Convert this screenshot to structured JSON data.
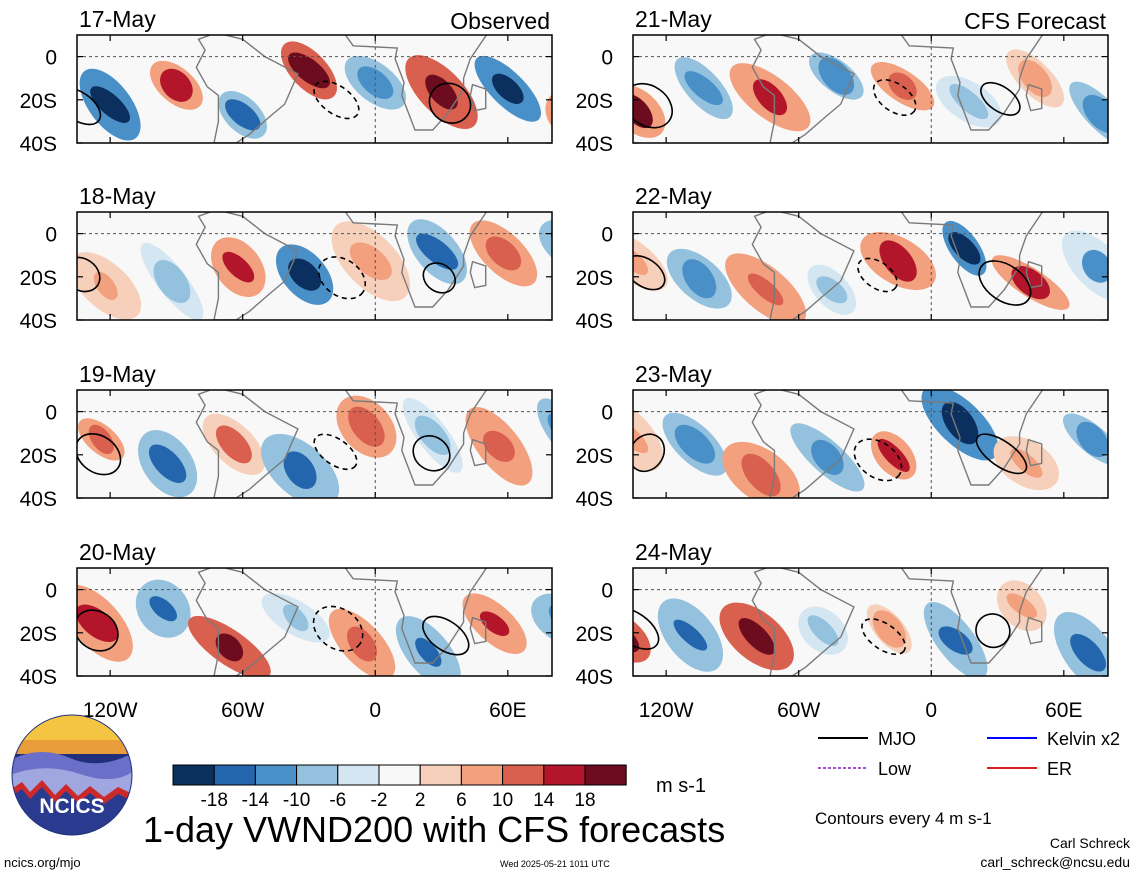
{
  "chart_data": {
    "type": "heatmap",
    "title": "1-day VWND200 with CFS forecasts",
    "unit_label": "m s-1",
    "column_labels": [
      "Observed",
      "CFS Forecast"
    ],
    "panels": [
      {
        "date": "17-May",
        "column": "Observed",
        "row": 0
      },
      {
        "date": "18-May",
        "column": "Observed",
        "row": 1
      },
      {
        "date": "19-May",
        "column": "Observed",
        "row": 2
      },
      {
        "date": "20-May",
        "column": "Observed",
        "row": 3
      },
      {
        "date": "21-May",
        "column": "CFS Forecast",
        "row": 0
      },
      {
        "date": "22-May",
        "column": "CFS Forecast",
        "row": 1
      },
      {
        "date": "23-May",
        "column": "CFS Forecast",
        "row": 2
      },
      {
        "date": "24-May",
        "column": "CFS Forecast",
        "row": 3
      }
    ],
    "x_ticks": [
      "120W",
      "60W",
      "0",
      "60E"
    ],
    "x_tick_values": [
      -120,
      -60,
      0,
      60
    ],
    "y_ticks": [
      "0",
      "20S",
      "40S"
    ],
    "y_tick_values": [
      0,
      -20,
      -40
    ],
    "xlim": [
      -135,
      80
    ],
    "ylim": [
      -40,
      10
    ],
    "colorbar": {
      "boundaries": [
        "-18",
        "-14",
        "-10",
        "-6",
        "-2",
        "2",
        "6",
        "10",
        "14",
        "18"
      ],
      "colors": [
        "#0b2f5e",
        "#2366ad",
        "#4a90c8",
        "#93c1de",
        "#d3e6f2",
        "#f8f8f8",
        "#f7d0bb",
        "#f2a07e",
        "#d95f4e",
        "#b3162a",
        "#6d0b1f"
      ]
    },
    "contour_legend": [
      {
        "label": "MJO",
        "color": "#000000",
        "style": "solid"
      },
      {
        "label": "Kelvin x2",
        "color": "#0000ff",
        "style": "solid"
      },
      {
        "label": "Low",
        "color": "#a64dd6",
        "style": "dashed"
      },
      {
        "label": "ER",
        "color": "#d62020",
        "style": "solid"
      }
    ],
    "contour_note": "Contours every 4 m s-1"
  },
  "footer": {
    "url": "ncics.org/mjo",
    "timestamp": "Wed 2025-05-21 1011 UTC",
    "author": "Carl Schreck",
    "email": "carl_schreck@ncsu.edu"
  },
  "logo": {
    "text": "NCICS"
  }
}
